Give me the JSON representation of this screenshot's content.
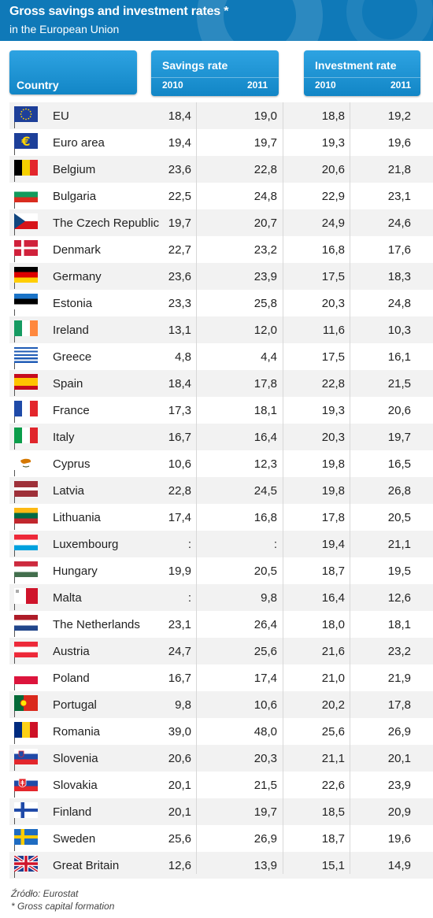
{
  "title": "Gross savings and investment rates *",
  "subtitle": "in the European Union",
  "headers": {
    "country": "Country",
    "savings": "Savings rate",
    "investment": "Investment rate",
    "year1": "2010",
    "year2": "2011"
  },
  "colors": {
    "banner": "#0f79b8",
    "header": "#1e94d4",
    "stripe": "#f2f2f2"
  },
  "footer": {
    "source": "Źródło: Eurostat",
    "note": "* Gross capital formation"
  },
  "chart_data": {
    "type": "table",
    "columns": [
      "Country",
      "Savings rate 2010",
      "Savings rate 2011",
      "Investment rate 2010",
      "Investment rate 2011"
    ],
    "rows": [
      {
        "country": "EU",
        "flag": "eu",
        "s2010": "18,4",
        "s2011": "19,0",
        "i2010": "18,8",
        "i2011": "19,2"
      },
      {
        "country": "Euro area",
        "flag": "euro",
        "s2010": "19,4",
        "s2011": "19,7",
        "i2010": "19,3",
        "i2011": "19,6"
      },
      {
        "country": "Belgium",
        "flag": "be",
        "s2010": "23,6",
        "s2011": "22,8",
        "i2010": "20,6",
        "i2011": "21,8"
      },
      {
        "country": "Bulgaria",
        "flag": "bg",
        "s2010": "22,5",
        "s2011": "24,8",
        "i2010": "22,9",
        "i2011": "23,1"
      },
      {
        "country": "The Czech Republic",
        "flag": "cz",
        "s2010": "19,7",
        "s2011": "20,7",
        "i2010": "24,9",
        "i2011": "24,6"
      },
      {
        "country": "Denmark",
        "flag": "dk",
        "s2010": "22,7",
        "s2011": "23,2",
        "i2010": "16,8",
        "i2011": "17,6"
      },
      {
        "country": "Germany",
        "flag": "de",
        "s2010": "23,6",
        "s2011": "23,9",
        "i2010": "17,5",
        "i2011": "18,3"
      },
      {
        "country": "Estonia",
        "flag": "ee",
        "s2010": "23,3",
        "s2011": "25,8",
        "i2010": "20,3",
        "i2011": "24,8"
      },
      {
        "country": "Ireland",
        "flag": "ie",
        "s2010": "13,1",
        "s2011": "12,0",
        "i2010": "11,6",
        "i2011": "10,3"
      },
      {
        "country": "Greece",
        "flag": "gr",
        "s2010": "4,8",
        "s2011": "4,4",
        "i2010": "17,5",
        "i2011": "16,1"
      },
      {
        "country": "Spain",
        "flag": "es",
        "s2010": "18,4",
        "s2011": "17,8",
        "i2010": "22,8",
        "i2011": "21,5"
      },
      {
        "country": "France",
        "flag": "fr",
        "s2010": "17,3",
        "s2011": "18,1",
        "i2010": "19,3",
        "i2011": "20,6"
      },
      {
        "country": "Italy",
        "flag": "it",
        "s2010": "16,7",
        "s2011": "16,4",
        "i2010": "20,3",
        "i2011": "19,7"
      },
      {
        "country": "Cyprus",
        "flag": "cy",
        "s2010": "10,6",
        "s2011": "12,3",
        "i2010": "19,8",
        "i2011": "16,5"
      },
      {
        "country": "Latvia",
        "flag": "lv",
        "s2010": "22,8",
        "s2011": "24,5",
        "i2010": "19,8",
        "i2011": "26,8"
      },
      {
        "country": "Lithuania",
        "flag": "lt",
        "s2010": "17,4",
        "s2011": "16,8",
        "i2010": "17,8",
        "i2011": "20,5"
      },
      {
        "country": "Luxembourg",
        "flag": "lu",
        "s2010": ":",
        "s2011": ":",
        "i2010": "19,4",
        "i2011": "21,1"
      },
      {
        "country": "Hungary",
        "flag": "hu",
        "s2010": "19,9",
        "s2011": "20,5",
        "i2010": "18,7",
        "i2011": "19,5"
      },
      {
        "country": "Malta",
        "flag": "mt",
        "s2010": ":",
        "s2011": "9,8",
        "i2010": "16,4",
        "i2011": "12,6"
      },
      {
        "country": "The Netherlands",
        "flag": "nl",
        "s2010": "23,1",
        "s2011": "26,4",
        "i2010": "18,0",
        "i2011": "18,1"
      },
      {
        "country": "Austria",
        "flag": "at",
        "s2010": "24,7",
        "s2011": "25,6",
        "i2010": "21,6",
        "i2011": "23,2"
      },
      {
        "country": "Poland",
        "flag": "pl",
        "s2010": "16,7",
        "s2011": "17,4",
        "i2010": "21,0",
        "i2011": "21,9"
      },
      {
        "country": "Portugal",
        "flag": "pt",
        "s2010": "9,8",
        "s2011": "10,6",
        "i2010": "20,2",
        "i2011": "17,8"
      },
      {
        "country": "Romania",
        "flag": "ro",
        "s2010": "39,0",
        "s2011": "48,0",
        "i2010": "25,6",
        "i2011": "26,9"
      },
      {
        "country": "Slovenia",
        "flag": "si",
        "s2010": "20,6",
        "s2011": "20,3",
        "i2010": "21,1",
        "i2011": "20,1"
      },
      {
        "country": "Slovakia",
        "flag": "sk",
        "s2010": "20,1",
        "s2011": "21,5",
        "i2010": "22,6",
        "i2011": "23,9"
      },
      {
        "country": "Finland",
        "flag": "fi",
        "s2010": "20,1",
        "s2011": "19,7",
        "i2010": "18,5",
        "i2011": "20,9"
      },
      {
        "country": "Sweden",
        "flag": "se",
        "s2010": "25,6",
        "s2011": "26,9",
        "i2010": "18,7",
        "i2011": "19,6"
      },
      {
        "country": "Great Britain",
        "flag": "gb",
        "s2010": "12,6",
        "s2011": "13,9",
        "i2010": "15,1",
        "i2011": "14,9"
      }
    ]
  }
}
